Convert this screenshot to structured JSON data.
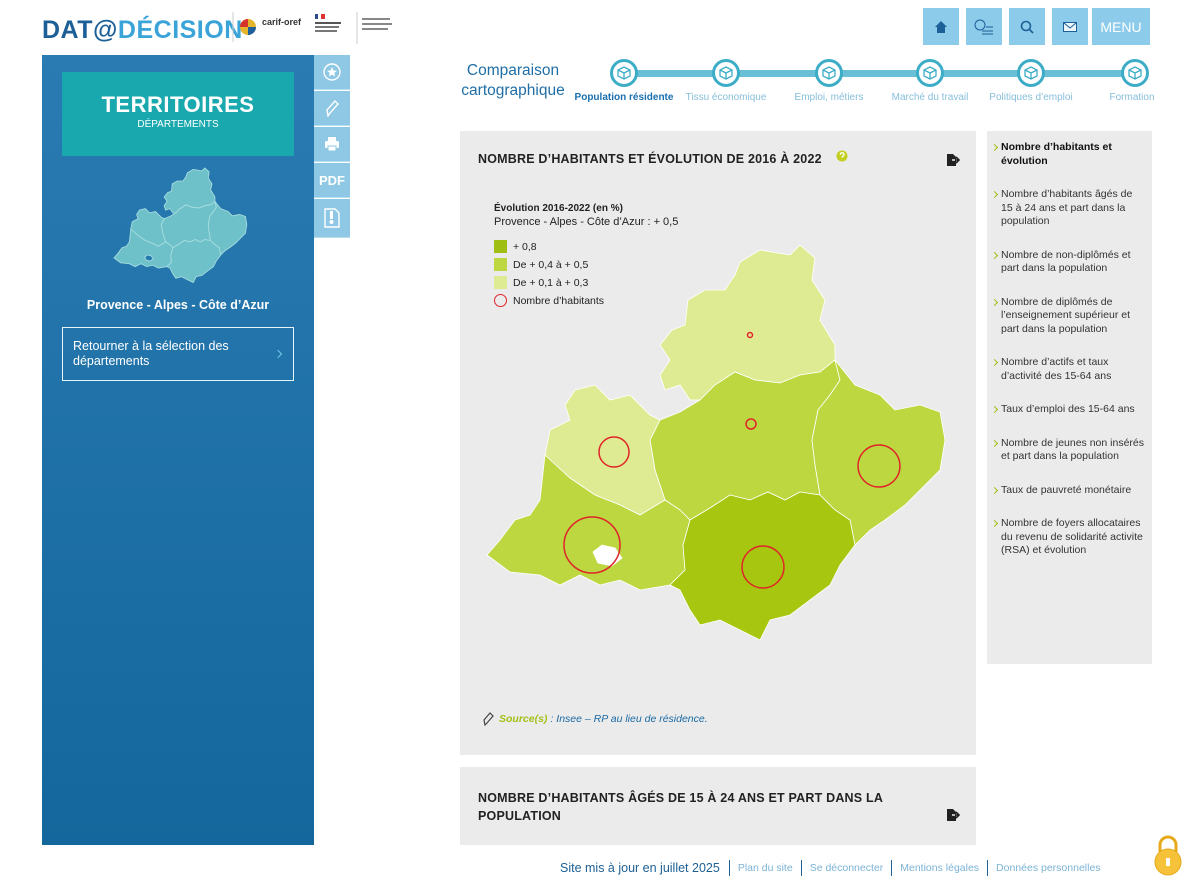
{
  "header": {
    "logo_prefix": "DAT@",
    "logo_suffix": "DÉCISION",
    "partner": "carif-oref",
    "menu": "MENU"
  },
  "sidebar": {
    "title": "TERRITOIRES",
    "subtitle": "DÉPARTEMENTS",
    "region": "Provence - Alpes - Côte d’Azur",
    "back_link": "Retourner à la sélection des départements",
    "pdf": "PDF"
  },
  "steps": {
    "title": "Comparaison cartographique",
    "items": [
      "Population résidente",
      "Tissu économique",
      "Emploi, métiers",
      "Marché du travail",
      "Politiques d’emploi",
      "Formation"
    ]
  },
  "panel": {
    "title": "NOMBRE D’HABITANTS ET ÉVOLUTION DE 2016 À 2022",
    "legend": {
      "title": "Évolution 2016-2022 (en %)",
      "summary": "Provence - Alpes - Côte d’Azur : + 0,5",
      "items": [
        "+ 0,8",
        "De + 0,4 à + 0,5",
        "De + 0,1 à + 0,3",
        "Nombre d’habitants"
      ]
    },
    "source_label": "Source(s)",
    "source_text": ": Insee – RP au lieu de résidence."
  },
  "indicators": [
    "Nombre d’habitants et évolution",
    "Nombre d’habitants âgés de 15 à 24 ans et part dans la population",
    "Nombre de non-diplômés et part dans la population",
    "Nombre de diplômés de l’enseignement supérieur et part dans la population",
    "Nombre d’actifs et taux d’activité des 15-64 ans",
    "Taux d’emploi des 15-64 ans",
    "Nombre de jeunes non insérés et part dans la population",
    "Taux de pauvreté monétaire",
    "Nombre de foyers allocataires du revenu de solidarité activite (RSA) et évolution"
  ],
  "next_panel": {
    "title": "NOMBRE D’HABITANTS ÂGÉS DE 15 À 24 ANS ET PART DANS LA POPULATION"
  },
  "footer": {
    "updated": "Site mis à jour en juillet 2025",
    "links": [
      "Plan du site",
      "Se déconnecter",
      "Mentions légales",
      "Données personnelles"
    ]
  }
}
